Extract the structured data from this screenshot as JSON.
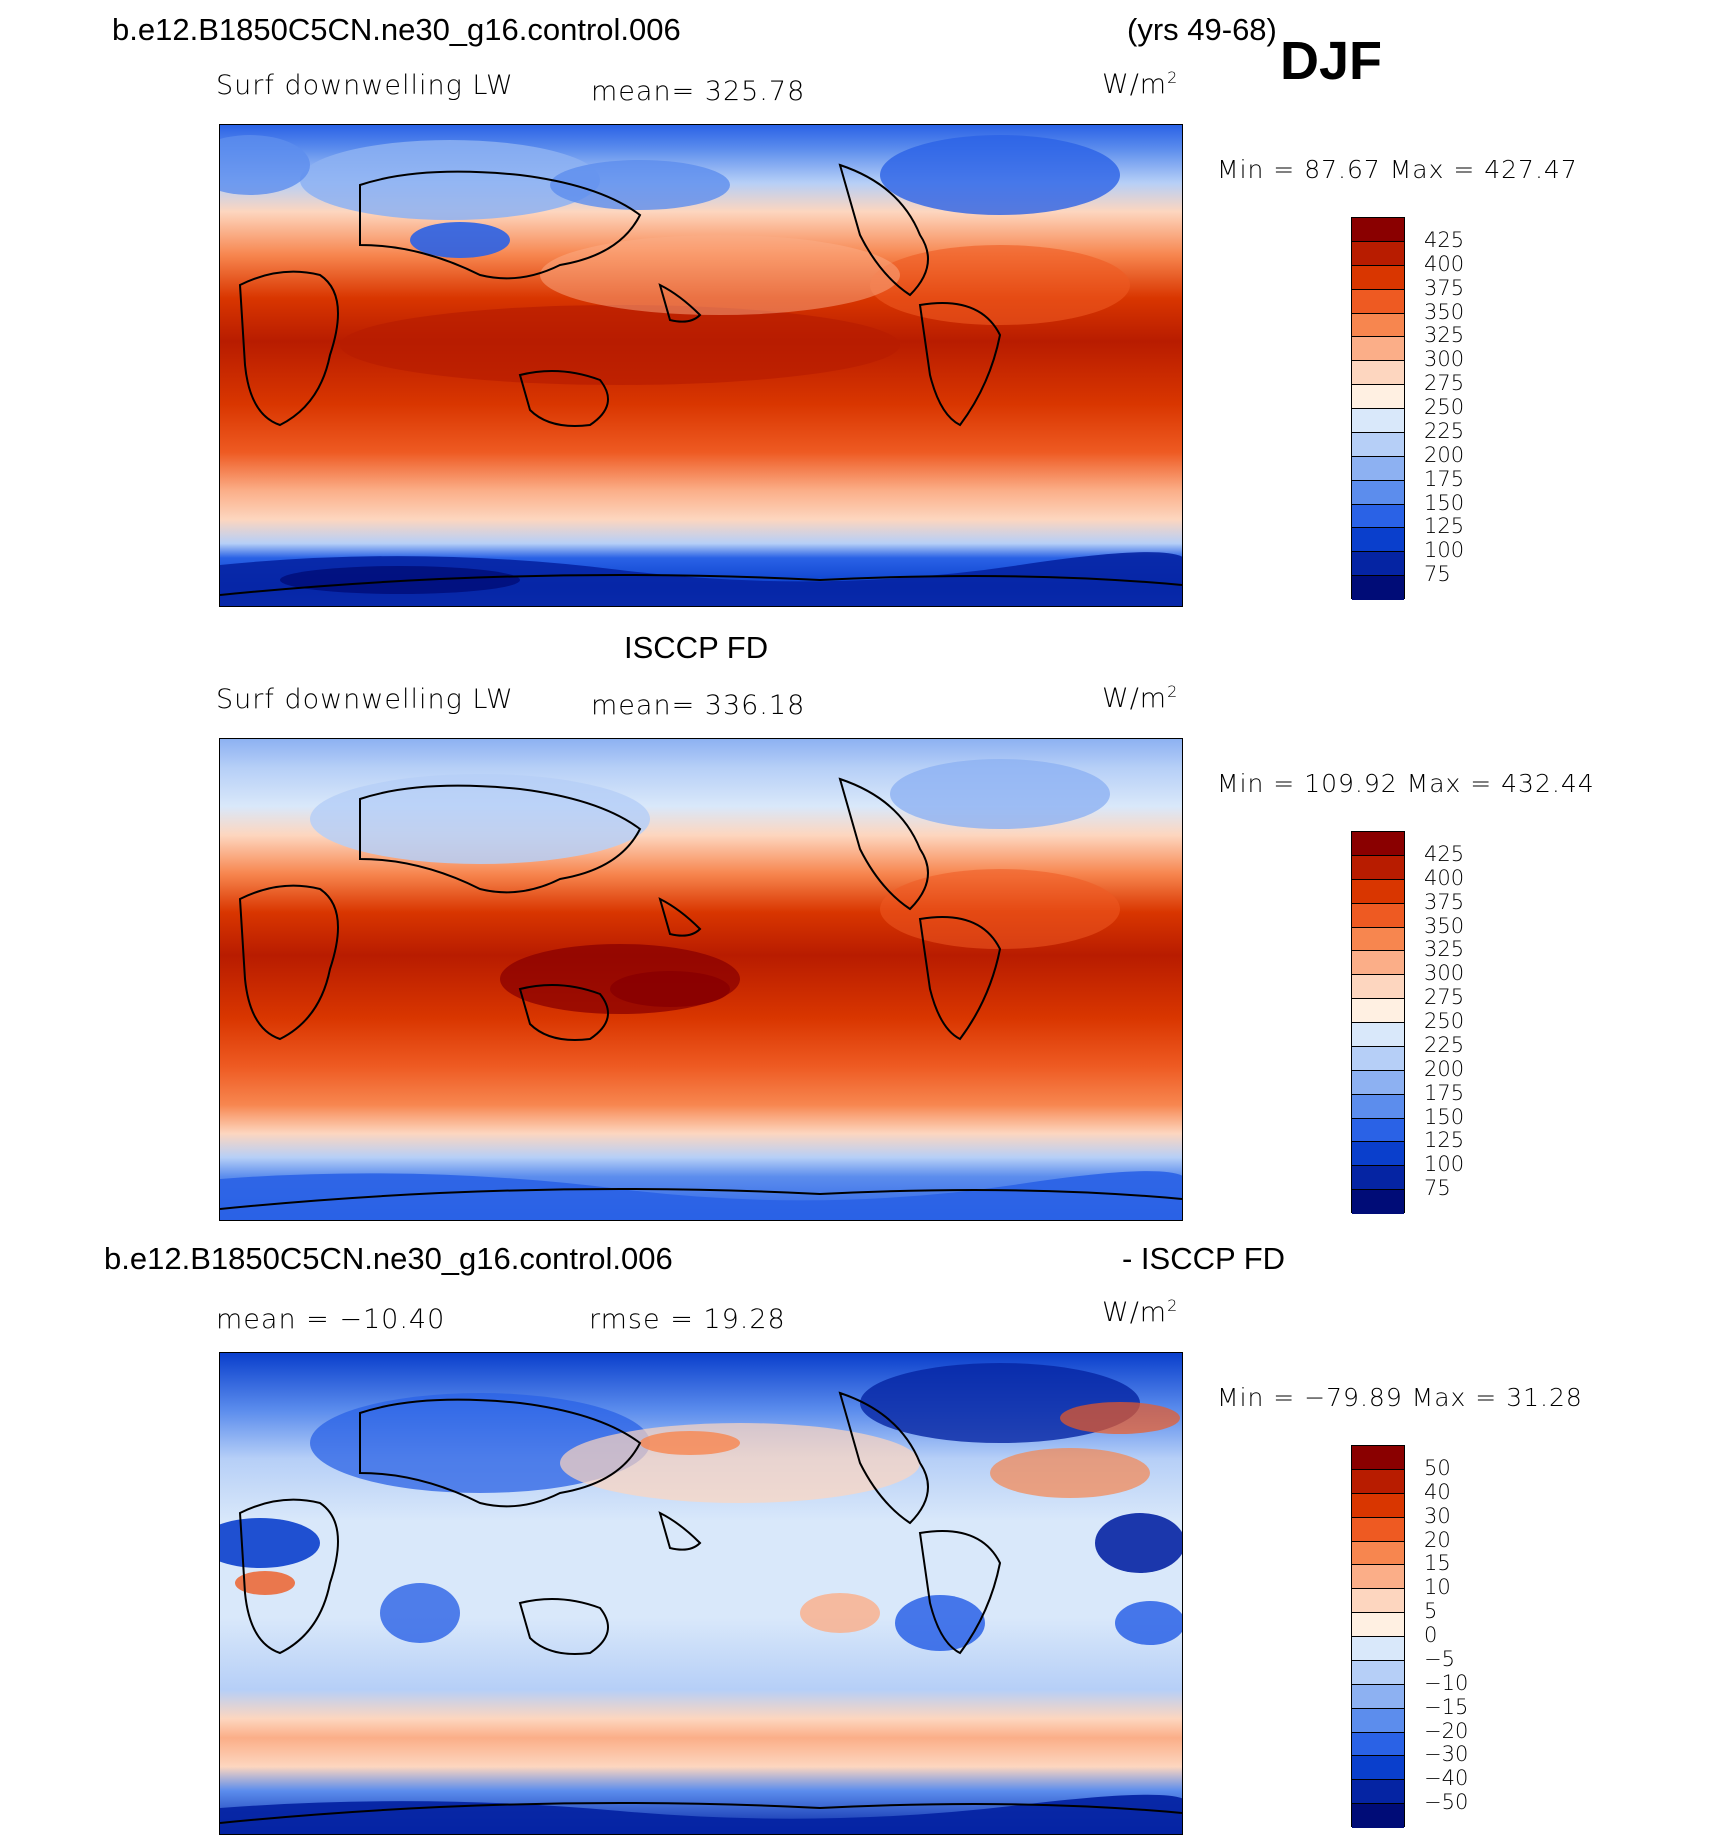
{
  "header": {
    "case_name": "b.e12.B1850C5CN.ne30_g16.control.006",
    "years": "(yrs 49-68)",
    "season": "DJF"
  },
  "panels": [
    {
      "id": "model",
      "variable": "Surf downwelling LW",
      "mean_label": "mean= 325.78",
      "units": "W/m",
      "units_exp": "2",
      "minmax": "Min =  87.67 Max = 427.47"
    },
    {
      "id": "obs",
      "title": "ISCCP FD",
      "variable": "Surf downwelling LW",
      "mean_label": "mean= 336.18",
      "units": "W/m",
      "units_exp": "2",
      "minmax": "Min = 109.92 Max = 432.44"
    },
    {
      "id": "diff",
      "title_left": "b.e12.B1850C5CN.ne30_g16.control.006",
      "title_right": "- ISCCP FD",
      "mean_label": "mean = −10.40",
      "rmse_label": "rmse =  19.28",
      "units": "W/m",
      "units_exp": "2",
      "minmax": "Min = −79.89 Max =  31.28"
    }
  ],
  "colorbars": {
    "abs": {
      "labels": [
        "425",
        "400",
        "375",
        "350",
        "325",
        "300",
        "275",
        "250",
        "225",
        "200",
        "175",
        "150",
        "125",
        "100",
        "75"
      ],
      "colors": [
        "#8a0000",
        "#b81c00",
        "#d93600",
        "#ee5a22",
        "#f7864f",
        "#fbae88",
        "#fdd6bf",
        "#fff0e2",
        "#d9e8fa",
        "#b6cff7",
        "#8db1f2",
        "#5c8ded",
        "#2a62e6",
        "#0a3fcc",
        "#0524a3",
        "#000c77"
      ]
    },
    "diff": {
      "labels": [
        "50",
        "40",
        "30",
        "20",
        "15",
        "10",
        "5",
        "0",
        "−5",
        "−10",
        "−15",
        "−20",
        "−30",
        "−40",
        "−50"
      ],
      "colors": [
        "#8a0000",
        "#b81c00",
        "#d93600",
        "#ee5a22",
        "#f7864f",
        "#fbae88",
        "#fdd6bf",
        "#fff0e2",
        "#d9e8fa",
        "#b6cff7",
        "#8db1f2",
        "#5c8ded",
        "#2a62e6",
        "#0a3fcc",
        "#0524a3",
        "#000c77"
      ]
    }
  },
  "map_projection": "cylindrical equidistant, 0-360E, continents outlined"
}
